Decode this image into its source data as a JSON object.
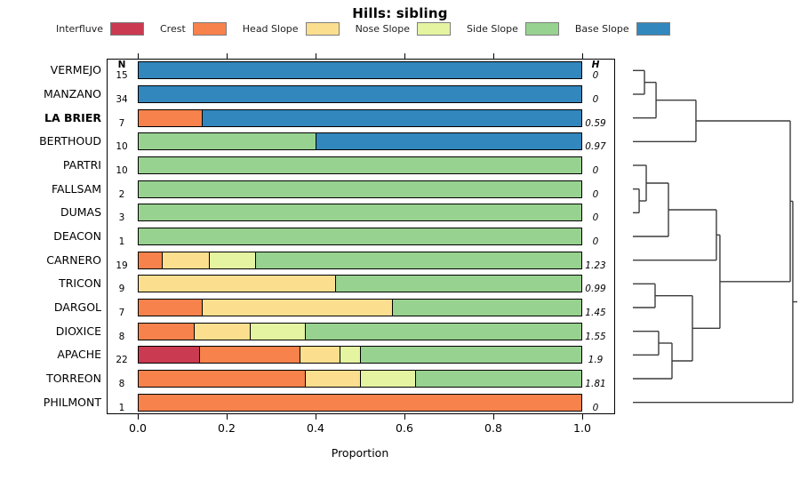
{
  "title": "Hills: sibling",
  "xlabel": "Proportion",
  "columns": {
    "n_header": "N",
    "h_header": "H"
  },
  "legend": [
    {
      "key": "interfluve",
      "label": "Interfluve",
      "color": "#ca3a50"
    },
    {
      "key": "crest",
      "label": "Crest",
      "color": "#f7824c"
    },
    {
      "key": "head_slope",
      "label": "Head Slope",
      "color": "#fcdf8e"
    },
    {
      "key": "nose_slope",
      "label": "Nose Slope",
      "color": "#e4f4a1"
    },
    {
      "key": "side_slope",
      "label": "Side Slope",
      "color": "#98d290"
    },
    {
      "key": "base_slope",
      "label": "Base Slope",
      "color": "#3287bd"
    }
  ],
  "chart_data": {
    "type": "bar",
    "orientation": "horizontal-stacked",
    "title": "Hills: sibling",
    "xlabel": "Proportion",
    "xlim": [
      0,
      1
    ],
    "x_ticks": [
      "0.0",
      "0.2",
      "0.4",
      "0.6",
      "0.8",
      "1.0"
    ],
    "x_tick_values": [
      0,
      0.2,
      0.4,
      0.6,
      0.8,
      1.0
    ],
    "legend_position": "top",
    "rows": [
      {
        "name": "VERMEJO",
        "n": 15,
        "h": "0",
        "bold": false,
        "segments": [
          [
            "base_slope",
            1.0
          ]
        ]
      },
      {
        "name": "MANZANO",
        "n": 34,
        "h": "0",
        "bold": false,
        "segments": [
          [
            "base_slope",
            1.0
          ]
        ]
      },
      {
        "name": "LA BRIER",
        "n": 7,
        "h": "0.59",
        "bold": true,
        "segments": [
          [
            "crest",
            0.143
          ],
          [
            "base_slope",
            0.857
          ]
        ]
      },
      {
        "name": "BERTHOUD",
        "n": 10,
        "h": "0.97",
        "bold": false,
        "segments": [
          [
            "side_slope",
            0.4
          ],
          [
            "base_slope",
            0.6
          ]
        ]
      },
      {
        "name": "PARTRI",
        "n": 10,
        "h": "0",
        "bold": false,
        "segments": [
          [
            "side_slope",
            1.0
          ]
        ]
      },
      {
        "name": "FALLSAM",
        "n": 2,
        "h": "0",
        "bold": false,
        "segments": [
          [
            "side_slope",
            1.0
          ]
        ]
      },
      {
        "name": "DUMAS",
        "n": 3,
        "h": "0",
        "bold": false,
        "segments": [
          [
            "side_slope",
            1.0
          ]
        ]
      },
      {
        "name": "DEACON",
        "n": 1,
        "h": "0",
        "bold": false,
        "segments": [
          [
            "side_slope",
            1.0
          ]
        ]
      },
      {
        "name": "CARNERO",
        "n": 19,
        "h": "1.23",
        "bold": false,
        "segments": [
          [
            "crest",
            0.053
          ],
          [
            "head_slope",
            0.105
          ],
          [
            "nose_slope",
            0.105
          ],
          [
            "side_slope",
            0.737
          ]
        ]
      },
      {
        "name": "TRICON",
        "n": 9,
        "h": "0.99",
        "bold": false,
        "segments": [
          [
            "head_slope",
            0.444
          ],
          [
            "side_slope",
            0.556
          ]
        ]
      },
      {
        "name": "DARGOL",
        "n": 7,
        "h": "1.45",
        "bold": false,
        "segments": [
          [
            "crest",
            0.143
          ],
          [
            "head_slope",
            0.4285
          ],
          [
            "side_slope",
            0.4285
          ]
        ]
      },
      {
        "name": "DIOXICE",
        "n": 8,
        "h": "1.55",
        "bold": false,
        "segments": [
          [
            "crest",
            0.125
          ],
          [
            "head_slope",
            0.125
          ],
          [
            "nose_slope",
            0.125
          ],
          [
            "side_slope",
            0.625
          ]
        ]
      },
      {
        "name": "APACHE",
        "n": 22,
        "h": "1.9",
        "bold": false,
        "segments": [
          [
            "interfluve",
            0.136
          ],
          [
            "crest",
            0.227
          ],
          [
            "head_slope",
            0.091
          ],
          [
            "nose_slope",
            0.046
          ],
          [
            "side_slope",
            0.5
          ]
        ]
      },
      {
        "name": "TORREON",
        "n": 8,
        "h": "1.81",
        "bold": false,
        "segments": [
          [
            "crest",
            0.375
          ],
          [
            "head_slope",
            0.125
          ],
          [
            "nose_slope",
            0.125
          ],
          [
            "side_slope",
            0.375
          ]
        ]
      },
      {
        "name": "PHILMONT",
        "n": 1,
        "h": "0",
        "bold": false,
        "segments": [
          [
            "crest",
            1.0
          ]
        ]
      }
    ],
    "dendrogram": {
      "side": "right",
      "leaves": [
        "VERMEJO",
        "MANZANO",
        "LA BRIER",
        "BERTHOUD",
        "PARTRI",
        "FALLSAM",
        "DUMAS",
        "DEACON",
        "CARNERO",
        "TRICON",
        "DARGOL",
        "DIOXICE",
        "APACHE",
        "TORREON",
        "PHILMONT"
      ],
      "merges": [
        {
          "a": "L0",
          "b": "L1",
          "h": 0.072
        },
        {
          "a": "M0",
          "b": "L2",
          "h": 0.144
        },
        {
          "a": "M1",
          "b": "L3",
          "h": 0.392
        },
        {
          "a": "L5",
          "b": "L6",
          "h": 0.039
        },
        {
          "a": "L4",
          "b": "M3",
          "h": 0.083
        },
        {
          "a": "M4",
          "b": "L7",
          "h": 0.221
        },
        {
          "a": "M5",
          "b": "L8",
          "h": 0.519
        },
        {
          "a": "L9",
          "b": "L10",
          "h": 0.138
        },
        {
          "a": "L11",
          "b": "L12",
          "h": 0.16
        },
        {
          "a": "M8",
          "b": "L13",
          "h": 0.243
        },
        {
          "a": "M7",
          "b": "M9",
          "h": 0.37
        },
        {
          "a": "M6",
          "b": "M10",
          "h": 0.541
        },
        {
          "a": "M2",
          "b": "M11",
          "h": 0.978
        },
        {
          "a": "M12",
          "b": "L14",
          "h": 0.994
        }
      ]
    }
  }
}
